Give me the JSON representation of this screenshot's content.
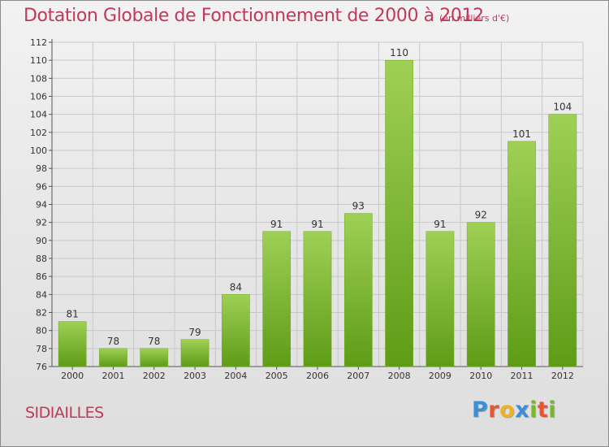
{
  "chart_data": {
    "type": "bar",
    "title": "Dotation Globale de Fonctionnement de 2000 à 2012",
    "subtitle": "(en milliers d'€)",
    "categories": [
      "2000",
      "2001",
      "2002",
      "2003",
      "2004",
      "2005",
      "2006",
      "2007",
      "2008",
      "2009",
      "2010",
      "2011",
      "2012"
    ],
    "values": [
      81,
      78,
      78,
      79,
      84,
      91,
      91,
      93,
      110,
      91,
      92,
      101,
      104
    ],
    "ylim": [
      76,
      112
    ],
    "yticks": [
      76,
      78,
      80,
      82,
      84,
      86,
      88,
      90,
      92,
      94,
      96,
      98,
      100,
      102,
      104,
      106,
      108,
      110,
      112
    ],
    "grid": true,
    "legend": "none",
    "colors": {
      "bar_top": "#9fd056",
      "bar_bottom": "#5e9c16",
      "title": "#c0395a",
      "grid": "#c8c8c8"
    }
  },
  "footer": {
    "commune": "SIDIAILLES",
    "brand": [
      "P",
      "r",
      "o",
      "x",
      "i",
      "t",
      "i"
    ],
    "brand_colors": [
      "#3b8fd6",
      "#e8562f",
      "#f0b21f",
      "#3b8fd6",
      "#7ab829",
      "#e8562f",
      "#7ab829"
    ]
  }
}
